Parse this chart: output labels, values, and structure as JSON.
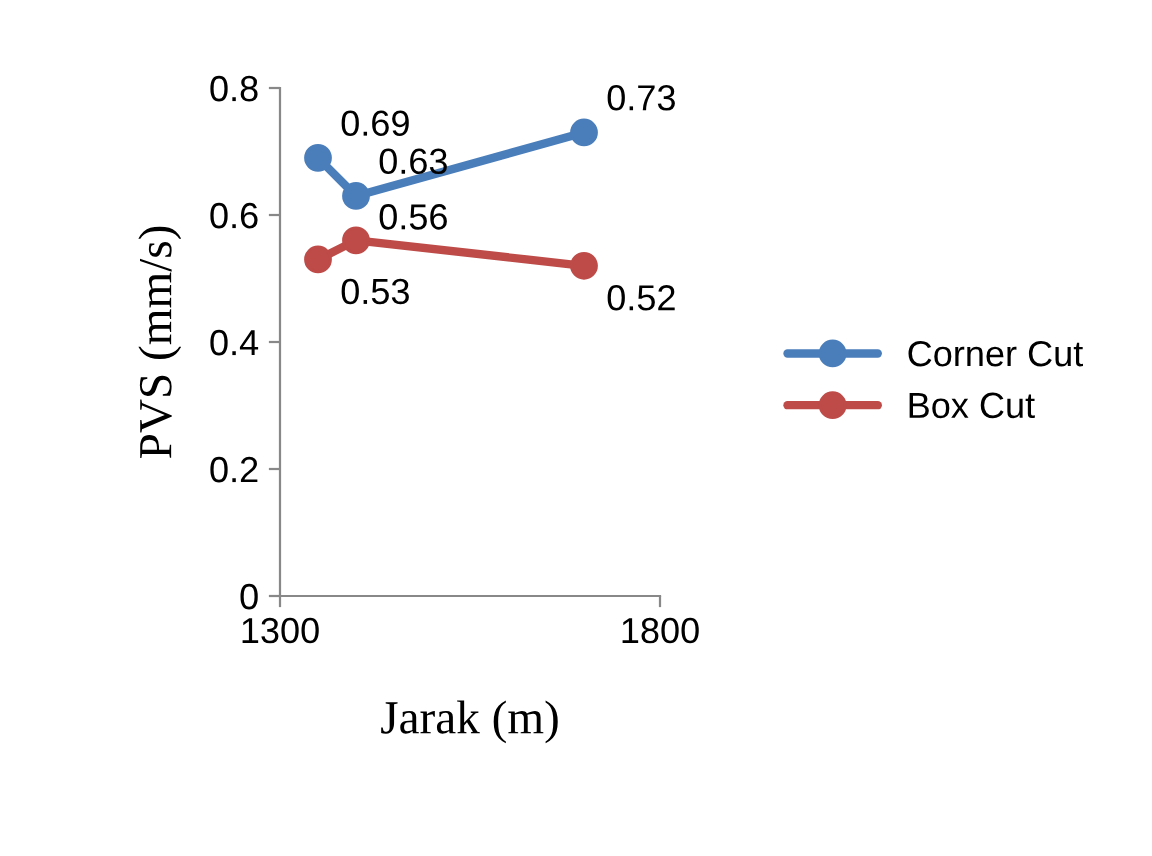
{
  "chart_data": {
    "type": "line",
    "xlabel": "Jarak (m)",
    "ylabel": "PVS (mm/s)",
    "x": [
      1350,
      1400,
      1700
    ],
    "series": [
      {
        "name": "Corner Cut",
        "color": "#4a7ebb",
        "values": [
          0.69,
          0.63,
          0.73
        ]
      },
      {
        "name": "Box Cut",
        "color": "#be4b48",
        "values": [
          0.53,
          0.56,
          0.52
        ]
      }
    ],
    "xlim": [
      1300,
      1800
    ],
    "xticks": [
      1300,
      1800
    ],
    "ylim": [
      0,
      0.8
    ],
    "yticks": [
      0,
      0.2,
      0.4,
      0.6,
      0.8
    ],
    "marker": "circle",
    "line_style": "solid",
    "data_labels": true,
    "legend": "right",
    "grid": false
  }
}
